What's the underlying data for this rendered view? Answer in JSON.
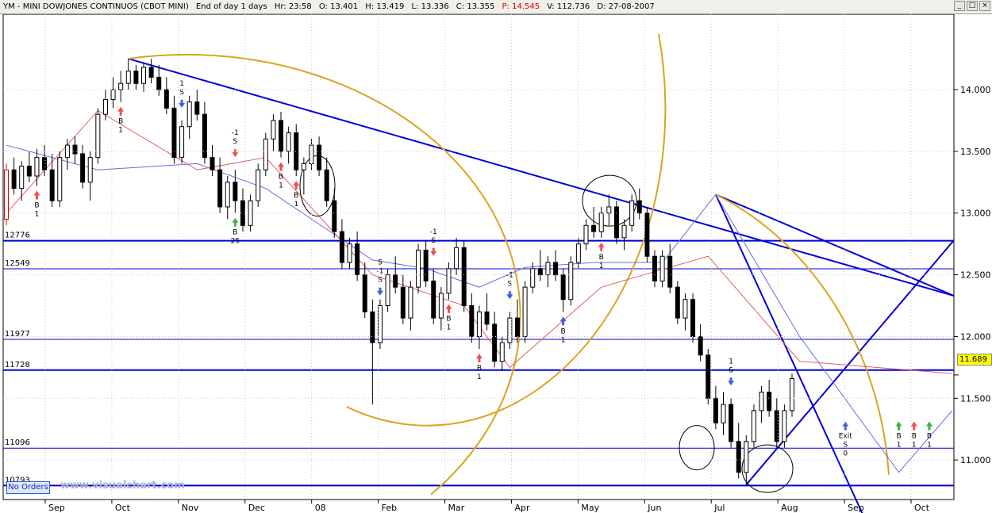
{
  "window": {
    "title_segments": [
      "YM - MINI DOWJONES CONTINUOS (CBOT MINI)",
      "End of day 1 days",
      "Hr: 23:58",
      "O: 13.401",
      "H: 13.419",
      "L: 13.336",
      "C: 13.355",
      "P: 14.545",
      "V: 112.736",
      "D: 27-08-2007"
    ],
    "min_label": "_",
    "max_label": "□",
    "close_label": "×"
  },
  "status": {
    "no_orders_label": "No Orders",
    "watermark": "www.visualchart.com",
    "last_price_label": "11.689"
  },
  "colors": {
    "trendline": "#0000d8",
    "arc": "#d9a520",
    "red_line": "#e06060",
    "blue_thin": "#6a6ae0",
    "sell_arrow": "#4060e0",
    "buy_arrow_red": "#f05050",
    "buy_arrow_green": "#40b040"
  },
  "chart_data": {
    "type": "candlestick",
    "x_tick_labels": [
      "Sep",
      "Oct",
      "Nov",
      "Dec",
      "08",
      "Feb",
      "Mar",
      "Apr",
      "May",
      "Jun",
      "Jul",
      "Aug",
      "Sep",
      "Oct"
    ],
    "y_ticks": [
      11.0,
      11.5,
      12.0,
      12.5,
      13.0,
      13.5,
      14.0
    ],
    "y_tick_labels": [
      "11.000",
      "11.500",
      "12.000",
      "12.500",
      "13.000",
      "13.500",
      "14.000"
    ],
    "ylim": [
      10.68,
      14.61
    ],
    "last_price": 11.689,
    "horizontal_levels": [
      {
        "label": "12776",
        "value": 12.776
      },
      {
        "label": "12549",
        "value": 12.549
      },
      {
        "label": "11977",
        "value": 11.977
      },
      {
        "label": "11728",
        "value": 11.728
      },
      {
        "label": "11096",
        "value": 11.096
      },
      {
        "label": "10793",
        "value": 10.793
      }
    ],
    "signals": [
      {
        "x_index": 23,
        "side": "sell",
        "lines": [
          "1",
          "S"
        ],
        "color": "blue"
      },
      {
        "x_index": 4,
        "side": "buy",
        "lines": [
          "B",
          "1"
        ],
        "color": "red"
      },
      {
        "x_index": 15,
        "side": "buy",
        "lines": [
          "B",
          "1"
        ],
        "color": "red"
      },
      {
        "x_index": 30,
        "side": "sell",
        "lines": [
          "-1",
          "S"
        ],
        "color": "red"
      },
      {
        "x_index": 30,
        "side": "buy",
        "lines": [
          "B",
          "25"
        ],
        "color": "green"
      },
      {
        "x_index": 36,
        "side": "buy",
        "lines": [
          "B",
          "1"
        ],
        "color": "red"
      },
      {
        "x_index": 38,
        "side": "buy",
        "lines": [
          "B",
          "1"
        ],
        "color": "red"
      },
      {
        "x_index": 49,
        "side": "sell",
        "lines": [
          "S",
          "-1",
          "S"
        ],
        "color": "blue"
      },
      {
        "x_index": 56,
        "side": "sell",
        "lines": [
          "-1",
          "S"
        ],
        "color": "red"
      },
      {
        "x_index": 58,
        "side": "buy",
        "lines": [
          "B",
          "1"
        ],
        "color": "red"
      },
      {
        "x_index": 62,
        "side": "buy",
        "lines": [
          "B",
          "1"
        ],
        "color": "red"
      },
      {
        "x_index": 66,
        "side": "sell",
        "lines": [
          "-1",
          "S"
        ],
        "color": "blue"
      },
      {
        "x_index": 73,
        "side": "buy",
        "lines": [
          "B",
          "1"
        ],
        "color": "blue"
      },
      {
        "x_index": 78,
        "side": "buy",
        "lines": [
          "B",
          "1"
        ],
        "color": "red"
      },
      {
        "x_index": 95,
        "side": "sell",
        "lines": [
          "1",
          "S"
        ],
        "color": "blue"
      },
      {
        "x_index": 110,
        "side": "exit",
        "lines": [
          "Exit",
          "S",
          "0"
        ],
        "color": "blue"
      },
      {
        "x_index": 117,
        "side": "buy",
        "lines": [
          "B",
          "1"
        ],
        "color": "green"
      },
      {
        "x_index": 121,
        "side": "buy",
        "lines": [
          "B",
          "1"
        ],
        "color": "green"
      },
      {
        "x_index": 119,
        "side": "buy",
        "lines": [
          "B",
          "1"
        ],
        "color": "red"
      }
    ],
    "bars": [
      [
        12.95,
        13.4,
        12.9,
        13.35
      ],
      [
        13.35,
        13.45,
        13.15,
        13.2
      ],
      [
        13.2,
        13.42,
        13.1,
        13.38
      ],
      [
        13.38,
        13.5,
        13.25,
        13.3
      ],
      [
        13.3,
        13.52,
        13.22,
        13.45
      ],
      [
        13.45,
        13.55,
        13.3,
        13.35
      ],
      [
        13.35,
        13.48,
        13.05,
        13.1
      ],
      [
        13.1,
        13.5,
        13.05,
        13.45
      ],
      [
        13.45,
        13.6,
        13.35,
        13.55
      ],
      [
        13.55,
        13.62,
        13.4,
        13.48
      ],
      [
        13.48,
        13.55,
        13.2,
        13.25
      ],
      [
        13.25,
        13.5,
        13.1,
        13.45
      ],
      [
        13.45,
        13.85,
        13.4,
        13.8
      ],
      [
        13.8,
        14.0,
        13.75,
        13.92
      ],
      [
        13.92,
        14.1,
        13.85,
        14.0
      ],
      [
        14.0,
        14.15,
        13.9,
        14.05
      ],
      [
        14.05,
        14.25,
        14.0,
        14.15
      ],
      [
        14.15,
        14.2,
        14.0,
        14.05
      ],
      [
        14.05,
        14.22,
        13.98,
        14.18
      ],
      [
        14.18,
        14.25,
        14.05,
        14.1
      ],
      [
        14.1,
        14.2,
        13.95,
        14.0
      ],
      [
        14.0,
        14.1,
        13.8,
        13.85
      ],
      [
        13.85,
        13.95,
        13.4,
        13.45
      ],
      [
        13.45,
        13.75,
        13.4,
        13.7
      ],
      [
        13.7,
        13.95,
        13.6,
        13.9
      ],
      [
        13.9,
        14.0,
        13.75,
        13.8
      ],
      [
        13.8,
        13.9,
        13.4,
        13.45
      ],
      [
        13.45,
        13.55,
        13.3,
        13.35
      ],
      [
        13.35,
        13.45,
        13.0,
        13.05
      ],
      [
        13.05,
        13.3,
        12.95,
        13.25
      ],
      [
        13.25,
        13.35,
        13.0,
        13.1
      ],
      [
        13.1,
        13.2,
        12.85,
        12.9
      ],
      [
        12.9,
        13.15,
        12.85,
        13.1
      ],
      [
        13.1,
        13.4,
        13.05,
        13.35
      ],
      [
        13.35,
        13.65,
        13.3,
        13.6
      ],
      [
        13.6,
        13.8,
        13.5,
        13.75
      ],
      [
        13.75,
        13.82,
        13.45,
        13.5
      ],
      [
        13.5,
        13.7,
        13.4,
        13.65
      ],
      [
        13.65,
        13.72,
        13.3,
        13.35
      ],
      [
        13.35,
        13.45,
        13.15,
        13.4
      ],
      [
        13.4,
        13.6,
        13.35,
        13.55
      ],
      [
        13.55,
        13.62,
        13.3,
        13.35
      ],
      [
        13.35,
        13.45,
        13.05,
        13.1
      ],
      [
        13.1,
        13.2,
        12.8,
        12.85
      ],
      [
        12.85,
        12.95,
        12.55,
        12.6
      ],
      [
        12.6,
        12.8,
        12.55,
        12.75
      ],
      [
        12.75,
        12.85,
        12.45,
        12.5
      ],
      [
        12.5,
        12.6,
        12.15,
        12.2
      ],
      [
        12.2,
        12.3,
        11.45,
        11.95
      ],
      [
        11.95,
        12.3,
        11.9,
        12.25
      ],
      [
        12.25,
        12.55,
        12.2,
        12.5
      ],
      [
        12.5,
        12.65,
        12.35,
        12.4
      ],
      [
        12.4,
        12.5,
        12.1,
        12.15
      ],
      [
        12.15,
        12.45,
        12.05,
        12.4
      ],
      [
        12.4,
        12.75,
        12.35,
        12.7
      ],
      [
        12.7,
        12.78,
        12.4,
        12.45
      ],
      [
        12.45,
        12.55,
        12.1,
        12.15
      ],
      [
        12.15,
        12.4,
        12.05,
        12.35
      ],
      [
        12.35,
        12.6,
        12.3,
        12.55
      ],
      [
        12.55,
        12.8,
        12.5,
        12.72
      ],
      [
        12.72,
        12.78,
        12.2,
        12.25
      ],
      [
        12.25,
        12.35,
        11.95,
        12.0
      ],
      [
        12.0,
        12.25,
        11.9,
        12.2
      ],
      [
        12.2,
        12.35,
        12.05,
        12.1
      ],
      [
        12.1,
        12.2,
        11.75,
        11.8
      ],
      [
        11.8,
        12.0,
        11.72,
        11.95
      ],
      [
        11.95,
        12.2,
        11.9,
        12.15
      ],
      [
        12.15,
        12.3,
        11.95,
        12.0
      ],
      [
        12.0,
        12.45,
        11.95,
        12.4
      ],
      [
        12.4,
        12.6,
        12.35,
        12.55
      ],
      [
        12.55,
        12.7,
        12.45,
        12.5
      ],
      [
        12.5,
        12.65,
        12.4,
        12.6
      ],
      [
        12.6,
        12.7,
        12.45,
        12.5
      ],
      [
        12.5,
        12.55,
        12.2,
        12.3
      ],
      [
        12.3,
        12.65,
        12.25,
        12.6
      ],
      [
        12.6,
        12.8,
        12.55,
        12.75
      ],
      [
        12.75,
        12.95,
        12.7,
        12.9
      ],
      [
        12.9,
        13.05,
        12.8,
        12.85
      ],
      [
        12.85,
        13.05,
        12.8,
        13.0
      ],
      [
        13.0,
        13.15,
        12.9,
        13.05
      ],
      [
        13.05,
        13.1,
        12.75,
        12.8
      ],
      [
        12.8,
        12.95,
        12.7,
        12.9
      ],
      [
        12.9,
        13.15,
        12.85,
        13.1
      ],
      [
        13.1,
        13.2,
        12.95,
        13.0
      ],
      [
        13.0,
        13.05,
        12.6,
        12.65
      ],
      [
        12.65,
        12.7,
        12.4,
        12.45
      ],
      [
        12.45,
        12.7,
        12.4,
        12.65
      ],
      [
        12.65,
        12.75,
        12.35,
        12.4
      ],
      [
        12.4,
        12.45,
        12.1,
        12.15
      ],
      [
        12.15,
        12.35,
        12.05,
        12.3
      ],
      [
        12.3,
        12.35,
        11.95,
        12.0
      ],
      [
        12.0,
        12.1,
        11.8,
        11.85
      ],
      [
        11.85,
        11.9,
        11.45,
        11.5
      ],
      [
        11.5,
        11.6,
        11.25,
        11.3
      ],
      [
        11.3,
        11.55,
        11.2,
        11.45
      ],
      [
        11.45,
        11.5,
        11.1,
        11.15
      ],
      [
        11.15,
        11.3,
        10.85,
        10.9
      ],
      [
        10.9,
        11.2,
        10.8,
        11.15
      ],
      [
        11.15,
        11.45,
        11.1,
        11.4
      ],
      [
        11.4,
        11.6,
        11.3,
        11.55
      ],
      [
        11.55,
        11.65,
        11.35,
        11.4
      ],
      [
        11.4,
        11.5,
        11.1,
        11.15
      ],
      [
        11.15,
        11.45,
        11.1,
        11.4
      ],
      [
        11.4,
        11.7,
        11.35,
        11.66
      ]
    ]
  }
}
